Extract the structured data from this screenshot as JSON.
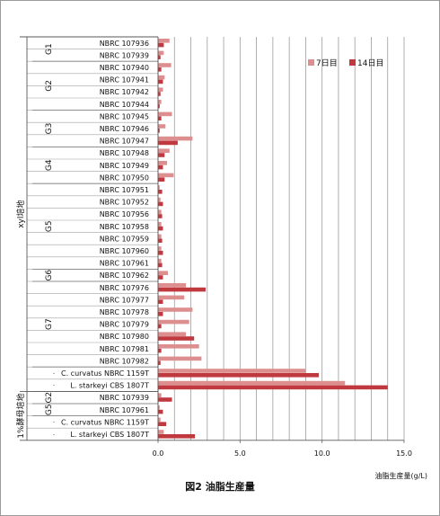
{
  "chart_data": {
    "type": "bar",
    "orientation": "horizontal",
    "caption": "図2 油脂生産量",
    "xlabel": "油脂生産量(g/L)",
    "xlim": [
      0,
      15
    ],
    "xticks": [
      "0.0",
      "5.0",
      "10.0",
      "15.0"
    ],
    "grid": true,
    "legend_position": "top-right",
    "series": [
      {
        "name": "7日目",
        "color": "#dd8f8f"
      },
      {
        "name": "14日目",
        "color": "#c0393f"
      }
    ],
    "groups": [
      {
        "label": "xyl培地",
        "subgroups": [
          {
            "label": "G1",
            "rows": [
              {
                "name": "NBRC 107936",
                "d7": 0.7,
                "d14": 0.35
              },
              {
                "name": "NBRC 107939",
                "d7": 0.35,
                "d14": 0.15
              }
            ]
          },
          {
            "label": "G2",
            "rows": [
              {
                "name": "NBRC 107940",
                "d7": 0.8,
                "d14": 0.2
              },
              {
                "name": "NBRC 107941",
                "d7": 0.4,
                "d14": 0.3
              },
              {
                "name": "NBRC 107942",
                "d7": 0.3,
                "d14": 0.15
              },
              {
                "name": "NBRC 107944",
                "d7": 0.2,
                "d14": 0.1
              }
            ]
          },
          {
            "label": "G3",
            "rows": [
              {
                "name": "NBRC 107945",
                "d7": 0.85,
                "d14": 0.2
              },
              {
                "name": "NBRC 107946",
                "d7": 0.45,
                "d14": 0.1
              },
              {
                "name": "NBRC 107947",
                "d7": 2.1,
                "d14": 1.2
              }
            ]
          },
          {
            "label": "G4",
            "rows": [
              {
                "name": "NBRC 107948",
                "d7": 0.7,
                "d14": 0.4
              },
              {
                "name": "NBRC 107949",
                "d7": 0.55,
                "d14": 0.3
              },
              {
                "name": "NBRC 107950",
                "d7": 0.95,
                "d14": 0.4
              }
            ]
          },
          {
            "label": "G5",
            "rows": [
              {
                "name": "NBRC 107951",
                "d7": 0.1,
                "d14": 0.25
              },
              {
                "name": "NBRC 107952",
                "d7": 0.15,
                "d14": 0.3
              },
              {
                "name": "NBRC 107956",
                "d7": 0.2,
                "d14": 0.25
              },
              {
                "name": "NBRC 107958",
                "d7": 0.2,
                "d14": 0.3
              },
              {
                "name": "NBRC 107959",
                "d7": 0.2,
                "d14": 0.25
              },
              {
                "name": "NBRC 107960",
                "d7": 0.2,
                "d14": 0.3
              },
              {
                "name": "NBRC 107961",
                "d7": 0.2,
                "d14": 0.25
              }
            ]
          },
          {
            "label": "G6",
            "rows": [
              {
                "name": "NBRC 107962",
                "d7": 0.6,
                "d14": 0.3
              }
            ]
          },
          {
            "label": "G7",
            "rows": [
              {
                "name": "NBRC 107976",
                "d7": 1.7,
                "d14": 2.9
              },
              {
                "name": "NBRC 107977",
                "d7": 1.6,
                "d14": 0.3
              },
              {
                "name": "NBRC 107978",
                "d7": 2.1,
                "d14": 0.3
              },
              {
                "name": "NBRC 107979",
                "d7": 1.9,
                "d14": 0.2
              },
              {
                "name": "NBRC 107980",
                "d7": 1.7,
                "d14": 2.2
              },
              {
                "name": "NBRC 107981",
                "d7": 2.5,
                "d14": 0.2
              },
              {
                "name": "NBRC 107982",
                "d7": 2.65,
                "d14": 0.15
              }
            ]
          },
          {
            "label": "",
            "rows": [
              {
                "name": "C. curvatus NBRC 1159T",
                "d7": 9.0,
                "d14": 9.8
              },
              {
                "name": "L. starkeyi CBS 1807T",
                "d7": 11.4,
                "d14": 14.0
              }
            ]
          }
        ]
      },
      {
        "label": "1%酵母培地",
        "subgroups": [
          {
            "label": "G2",
            "rows": [
              {
                "name": "NBRC 107939",
                "d7": 0.2,
                "d14": 0.85
              }
            ]
          },
          {
            "label": "G5",
            "rows": [
              {
                "name": "NBRC 107961",
                "d7": 0.1,
                "d14": 0.3
              }
            ]
          },
          {
            "label": "",
            "rows": [
              {
                "name": "C. curvatus NBRC 1159T",
                "d7": 0.15,
                "d14": 0.5
              },
              {
                "name": "L. starkeyi CBS 1807T",
                "d7": 0.35,
                "d14": 2.25
              }
            ]
          }
        ]
      }
    ]
  }
}
